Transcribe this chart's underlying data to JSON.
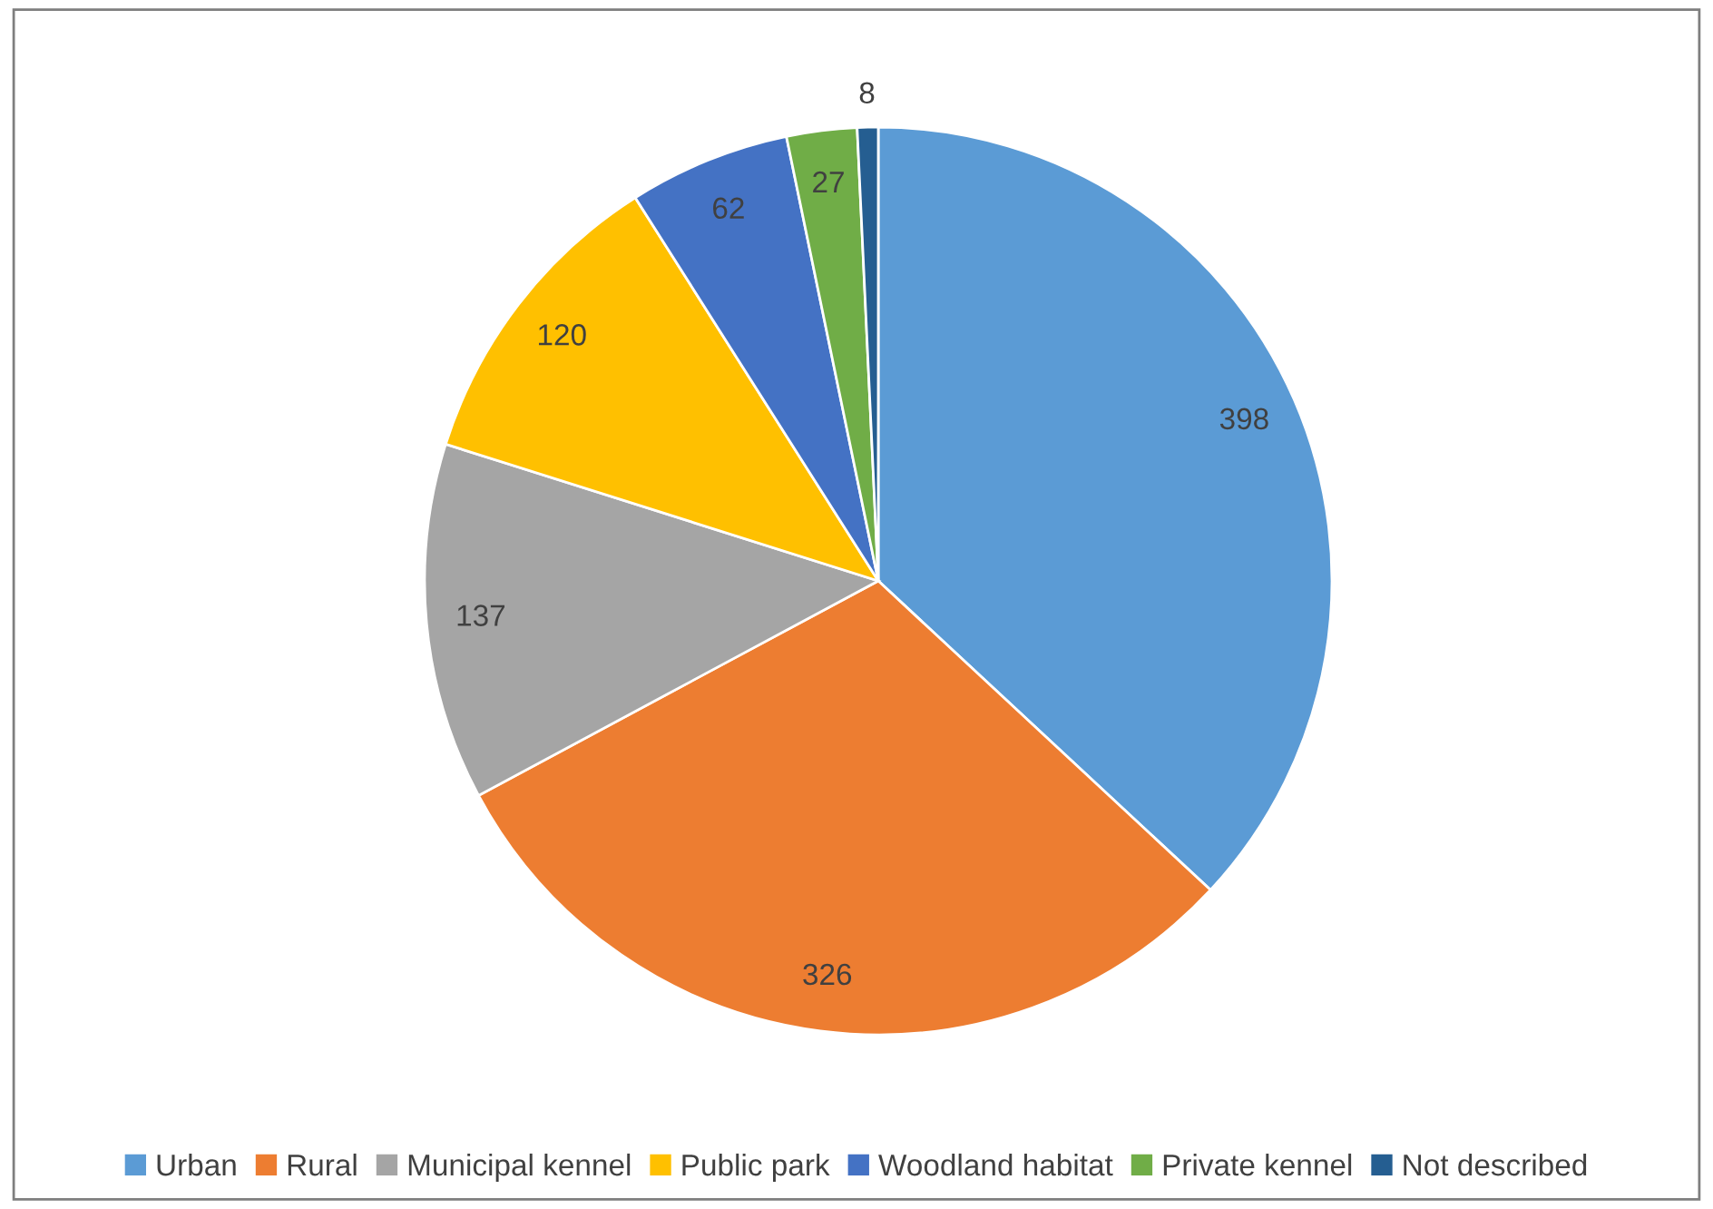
{
  "chart_data": {
    "type": "pie",
    "categories": [
      "Urban",
      "Rural",
      "Municipal kennel",
      "Public park",
      "Woodland habitat",
      "Private kennel",
      "Not described"
    ],
    "values": [
      398,
      326,
      137,
      120,
      62,
      27,
      8
    ],
    "colors": [
      "#5b9bd5",
      "#ed7d31",
      "#a5a5a5",
      "#ffc000",
      "#4472c4",
      "#70ad47",
      "#255e91"
    ],
    "data_labels": true,
    "legend": "bottom"
  }
}
